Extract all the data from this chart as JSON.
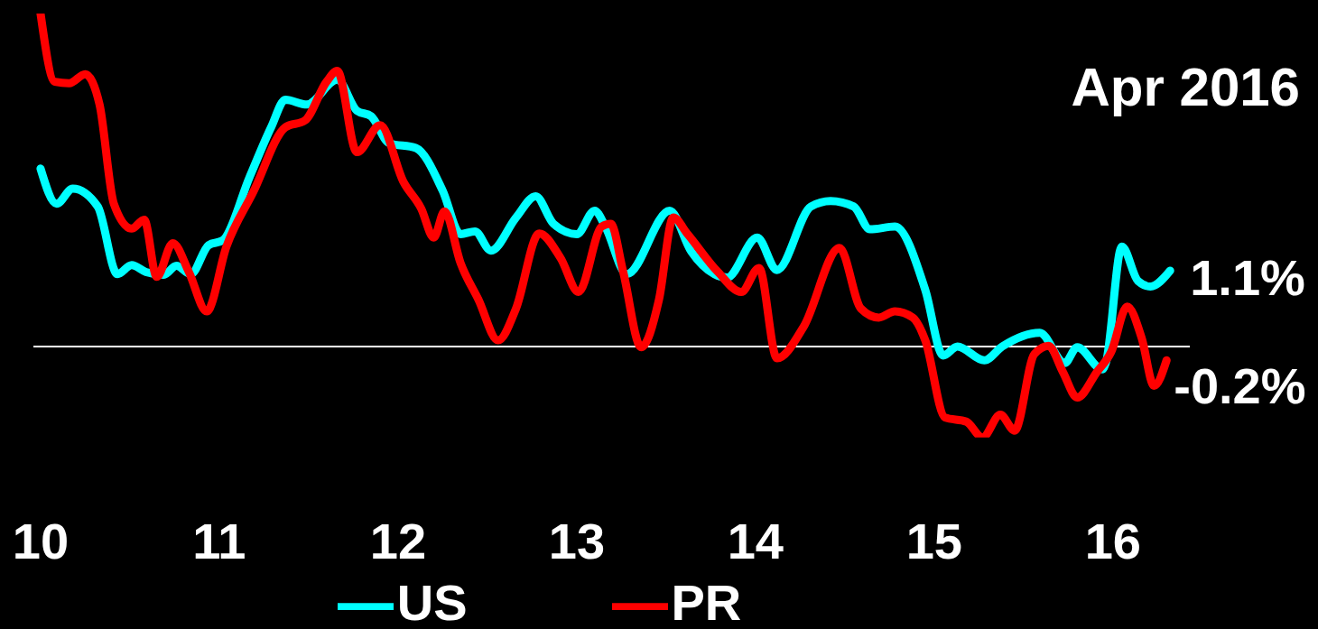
{
  "chart_data": {
    "type": "line",
    "title": "Apr 2016",
    "xlim": [
      9.96,
      16.43
    ],
    "xticks": [
      10,
      11,
      12,
      13,
      14,
      15,
      16
    ],
    "tick_labels": "x",
    "grid": false,
    "legend": "bottom",
    "marker": "none",
    "line_style": "solid",
    "ref_lines": [
      {
        "axis": "y",
        "value": 0,
        "color": "#ffffff"
      }
    ],
    "series": [
      {
        "name": "US",
        "color": "#00ffff",
        "x": [
          10.0,
          10.09,
          10.18,
          10.32,
          10.43,
          10.51,
          10.59,
          10.69,
          10.76,
          10.84,
          10.94,
          11.02,
          11.17,
          11.29,
          11.37,
          11.49,
          11.66,
          11.77,
          11.85,
          11.95,
          12.1,
          12.25,
          12.35,
          12.43,
          12.52,
          12.66,
          12.77,
          12.87,
          13.0,
          13.1,
          13.16,
          13.28,
          13.52,
          13.64,
          13.77,
          13.84,
          14.01,
          14.12,
          14.31,
          14.42,
          14.55,
          14.64,
          14.78,
          14.95,
          15.05,
          15.13,
          15.28,
          15.38,
          15.59,
          15.73,
          15.8,
          15.94,
          15.96,
          16.05,
          16.14,
          16.21,
          16.32
        ],
        "values": [
          2.58,
          2.07,
          2.29,
          2.03,
          1.05,
          1.18,
          1.08,
          1.04,
          1.17,
          1.05,
          1.47,
          1.54,
          2.46,
          3.18,
          3.58,
          3.51,
          3.87,
          3.42,
          3.34,
          2.95,
          2.88,
          2.26,
          1.63,
          1.67,
          1.39,
          1.87,
          2.18,
          1.78,
          1.63,
          1.97,
          1.74,
          1.05,
          1.97,
          1.38,
          1.05,
          1.0,
          1.58,
          1.11,
          2.03,
          2.11,
          2.03,
          1.7,
          1.74,
          0.82,
          -0.13,
          0,
          -0.2,
          0,
          0.2,
          -0.24,
          -0.01,
          -0.33,
          -0.24,
          1.45,
          0.95,
          0.87,
          1.1
        ],
        "value_labels": [
          null,
          null,
          null,
          null,
          null,
          null,
          null,
          null,
          null,
          null,
          null,
          null,
          null,
          null,
          null,
          null,
          null,
          null,
          null,
          null,
          null,
          null,
          null,
          null,
          null,
          null,
          null,
          null,
          null,
          null,
          null,
          null,
          null,
          null,
          null,
          null,
          null,
          null,
          null,
          null,
          null,
          null,
          null,
          null,
          null,
          null,
          null,
          null,
          null,
          null,
          null,
          null,
          null,
          null,
          null,
          null,
          "1.1%"
        ]
      },
      {
        "name": "PR",
        "color": "#ff0000",
        "x": [
          10.0,
          10.08,
          10.16,
          10.25,
          10.33,
          10.41,
          10.51,
          10.58,
          10.65,
          10.74,
          10.83,
          10.93,
          11.04,
          11.19,
          11.37,
          11.48,
          11.6,
          11.66,
          11.77,
          11.9,
          12.03,
          12.13,
          12.2,
          12.26,
          12.35,
          12.45,
          12.56,
          12.66,
          12.79,
          12.91,
          13.01,
          13.14,
          13.19,
          13.26,
          13.36,
          13.46,
          13.54,
          13.62,
          13.79,
          13.92,
          14.02,
          14.12,
          14.27,
          14.47,
          14.59,
          14.69,
          14.78,
          14.88,
          14.95,
          15.06,
          15.18,
          15.27,
          15.37,
          15.45,
          15.56,
          15.64,
          15.72,
          15.8,
          15.91,
          15.99,
          16.08,
          16.16,
          16.23,
          16.3
        ],
        "values": [
          4.83,
          3.84,
          3.82,
          3.95,
          3.51,
          2.07,
          1.71,
          1.84,
          1.01,
          1.5,
          1.08,
          0.51,
          1.45,
          2.24,
          3.18,
          3.28,
          3.84,
          4.0,
          2.82,
          3.21,
          2.39,
          2.0,
          1.58,
          1.96,
          1.21,
          0.68,
          0.09,
          0.55,
          1.64,
          1.28,
          0.79,
          1.74,
          1.78,
          1.08,
          -0.01,
          0.68,
          1.87,
          1.63,
          1.08,
          0.79,
          1.14,
          -0.17,
          0.29,
          1.43,
          0.55,
          0.42,
          0.51,
          0.42,
          0.09,
          -1.03,
          -1.09,
          -1.32,
          -0.99,
          -1.22,
          -0.11,
          0.01,
          -0.37,
          -0.74,
          -0.37,
          -0.08,
          0.58,
          0.13,
          -0.57,
          -0.2
        ],
        "value_labels": [
          null,
          null,
          null,
          null,
          null,
          null,
          null,
          null,
          null,
          null,
          null,
          null,
          null,
          null,
          null,
          null,
          null,
          null,
          null,
          null,
          null,
          null,
          null,
          null,
          null,
          null,
          null,
          null,
          null,
          null,
          null,
          null,
          null,
          null,
          null,
          null,
          null,
          null,
          null,
          null,
          null,
          null,
          null,
          null,
          null,
          null,
          null,
          null,
          null,
          null,
          null,
          null,
          null,
          null,
          null,
          null,
          null,
          null,
          null,
          null,
          null,
          null,
          null,
          "-0.2%"
        ]
      }
    ]
  }
}
